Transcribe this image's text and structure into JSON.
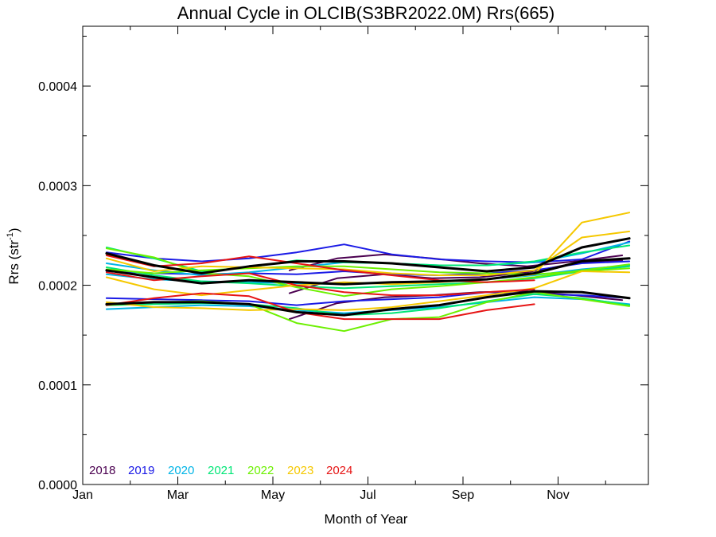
{
  "chart_data": {
    "type": "line",
    "title": "Annual Cycle in OLCIB(S3BR2022.0M) Rrs(665)",
    "xlabel": "Month of Year",
    "ylabel": "Rrs (str",
    "ylabel_sup": "-1",
    "ylabel_close": ")",
    "xlim": [
      1,
      12.9
    ],
    "ylim": [
      0,
      0.00046
    ],
    "x_ticks": [
      {
        "value": 1,
        "label": "Jan"
      },
      {
        "value": 3,
        "label": "Mar"
      },
      {
        "value": 5,
        "label": "May"
      },
      {
        "value": 7,
        "label": "Jul"
      },
      {
        "value": 9,
        "label": "Sep"
      },
      {
        "value": 11,
        "label": "Nov"
      }
    ],
    "y_ticks": [
      {
        "value": 0,
        "label": "0.0000"
      },
      {
        "value": 0.0001,
        "label": "0.0001"
      },
      {
        "value": 0.0002,
        "label": "0.0002"
      },
      {
        "value": 0.0003,
        "label": "0.0003"
      },
      {
        "value": 0.0004,
        "label": "0.0004"
      }
    ],
    "legend": [
      {
        "label": "2018",
        "color": "#4b0050"
      },
      {
        "label": "2019",
        "color": "#1a1ae6"
      },
      {
        "label": "2020",
        "color": "#00b4e6"
      },
      {
        "label": "2021",
        "color": "#00e676"
      },
      {
        "label": "2022",
        "color": "#6cf000"
      },
      {
        "label": "2023",
        "color": "#f5c800"
      },
      {
        "label": "2024",
        "color": "#e61414"
      }
    ],
    "legend_position": "bottom-left",
    "series": [
      {
        "color": "#4b0050",
        "width": 2,
        "x": [
          5.35,
          6.35,
          7.35,
          8.35,
          9.35,
          10.35,
          11.35,
          12.35
        ],
        "y": [
          0.000192,
          0.000207,
          0.000211,
          0.000207,
          0.000208,
          0.000213,
          0.000222,
          0.000225
        ]
      },
      {
        "color": "#4b0050",
        "width": 2,
        "x": [
          5.35,
          6.35,
          7.35,
          8.35,
          9.35,
          10.35,
          11.35,
          12.35
        ],
        "y": [
          0.000166,
          0.000182,
          0.000188,
          0.00019,
          0.000193,
          0.000194,
          0.00019,
          0.000185
        ]
      },
      {
        "color": "#4b0050",
        "width": 2,
        "x": [
          5.35,
          6.35,
          7.35,
          8.35,
          9.35,
          10.35,
          11.35,
          12.35
        ],
        "y": [
          0.000215,
          0.000227,
          0.000231,
          0.000227,
          0.000222,
          0.000219,
          0.000224,
          0.00023
        ]
      },
      {
        "color": "#1a1ae6",
        "width": 2,
        "x": [
          1.5,
          2.5,
          3.5,
          4.5,
          5.5,
          6.5,
          7.5,
          8.5,
          9.5,
          10.5,
          11.5,
          12.5
        ],
        "y": [
          0.000233,
          0.000227,
          0.000224,
          0.000227,
          0.000233,
          0.000241,
          0.000231,
          0.000226,
          0.000224,
          0.000223,
          0.000226,
          0.000244
        ]
      },
      {
        "color": "#1a1ae6",
        "width": 2,
        "x": [
          1.5,
          2.5,
          3.5,
          4.5,
          5.5,
          6.5,
          7.5,
          8.5,
          9.5,
          10.5,
          11.5,
          12.5
        ],
        "y": [
          0.000187,
          0.000186,
          0.000185,
          0.000184,
          0.00018,
          0.000184,
          0.000186,
          0.000188,
          0.000193,
          0.000191,
          0.00019,
          0.000187
        ]
      },
      {
        "color": "#1a1ae6",
        "width": 2,
        "x": [
          1.5,
          2.5,
          3.5,
          4.5,
          5.5,
          6.5,
          7.5,
          8.5,
          9.5,
          10.5,
          11.5,
          12.5
        ],
        "y": [
          0.000214,
          0.000212,
          0.000211,
          0.000212,
          0.000211,
          0.000214,
          0.000211,
          0.00021,
          0.000212,
          0.000215,
          0.000222,
          0.000224
        ]
      },
      {
        "color": "#00b4e6",
        "width": 2,
        "x": [
          1.5,
          2.5,
          3.5,
          4.5,
          5.5,
          6.5,
          7.5,
          8.5,
          9.5,
          10.5,
          11.5,
          12.5
        ],
        "y": [
          0.000176,
          0.000178,
          0.00018,
          0.000179,
          0.000175,
          0.000172,
          0.000175,
          0.000178,
          0.000183,
          0.000188,
          0.000186,
          0.000181
        ]
      },
      {
        "color": "#00b4e6",
        "width": 2,
        "x": [
          1.5,
          2.5,
          3.5,
          4.5,
          5.5,
          6.5,
          7.5,
          8.5,
          9.5,
          10.5,
          11.5,
          12.5
        ],
        "y": [
          0.000211,
          0.000206,
          0.000204,
          0.000203,
          0.000202,
          0.000201,
          0.000203,
          0.000204,
          0.000206,
          0.00021,
          0.000216,
          0.00022
        ]
      },
      {
        "color": "#00b4e6",
        "width": 2,
        "x": [
          1.5,
          2.5,
          3.5,
          4.5,
          5.5,
          6.5,
          7.5,
          8.5,
          9.5,
          10.5,
          11.5,
          12.5
        ],
        "y": [
          0.000222,
          0.000215,
          0.00021,
          0.000213,
          0.000218,
          0.000223,
          0.000222,
          0.00022,
          0.00022,
          0.000223,
          0.000232,
          0.000243
        ]
      },
      {
        "color": "#00e676",
        "width": 2,
        "x": [
          1.5,
          2.5,
          3.5,
          4.5,
          5.5,
          6.5,
          7.5,
          8.5,
          9.5,
          10.5,
          11.5,
          12.5
        ],
        "y": [
          0.000238,
          0.000227,
          0.000214,
          0.000218,
          0.000225,
          0.000223,
          0.000222,
          0.00022,
          0.00022,
          0.000224,
          0.000233,
          0.00024
        ]
      },
      {
        "color": "#00e676",
        "width": 2,
        "x": [
          1.5,
          2.5,
          3.5,
          4.5,
          5.5,
          6.5,
          7.5,
          8.5,
          9.5,
          10.5,
          11.5,
          12.5
        ],
        "y": [
          0.000218,
          0.00021,
          0.000204,
          0.000202,
          0.000199,
          0.000197,
          0.000199,
          0.000201,
          0.000203,
          0.000207,
          0.000214,
          0.000219
        ]
      },
      {
        "color": "#00e676",
        "width": 2,
        "x": [
          1.5,
          2.5,
          3.5,
          4.5,
          5.5,
          6.5,
          7.5,
          8.5,
          9.5,
          10.5,
          11.5,
          12.5
        ],
        "y": [
          0.00018,
          0.000181,
          0.000182,
          0.000181,
          0.000177,
          0.00017,
          0.000172,
          0.000177,
          0.000184,
          0.000191,
          0.000187,
          0.00018
        ]
      },
      {
        "color": "#6cf000",
        "width": 2,
        "x": [
          1.5,
          2.5,
          3.5,
          4.5,
          5.5,
          6.5,
          7.5,
          8.5,
          9.5,
          10.5,
          11.5,
          12.5
        ],
        "y": [
          0.000237,
          0.000228,
          0.000212,
          0.000209,
          0.000198,
          0.000189,
          0.000196,
          0.000199,
          0.000203,
          0.000208,
          0.000215,
          0.000221
        ]
      },
      {
        "color": "#6cf000",
        "width": 2,
        "x": [
          1.5,
          2.5,
          3.5,
          4.5,
          5.5,
          6.5,
          7.5,
          8.5,
          9.5,
          10.5,
          11.5,
          12.5
        ],
        "y": [
          0.00018,
          0.000183,
          0.000184,
          0.000181,
          0.000162,
          0.000154,
          0.000166,
          0.000168,
          0.000183,
          0.000193,
          0.000186,
          0.000179
        ]
      },
      {
        "color": "#6cf000",
        "width": 2,
        "x": [
          1.5,
          2.5,
          3.5,
          4.5,
          5.5,
          6.5,
          7.5,
          8.5,
          9.5,
          10.5,
          11.5,
          12.5
        ],
        "y": [
          0.000216,
          0.000212,
          0.000215,
          0.000217,
          0.000219,
          0.000219,
          0.000216,
          0.000213,
          0.000212,
          0.000211,
          0.000214,
          0.000217
        ]
      },
      {
        "color": "#f5c800",
        "width": 2,
        "x": [
          1.5,
          2.5,
          3.5,
          4.5,
          5.5,
          6.5,
          7.5,
          8.5,
          9.5,
          10.5,
          11.5,
          12.5
        ],
        "y": [
          0.000227,
          0.000214,
          0.000219,
          0.000218,
          0.000217,
          0.000216,
          0.000212,
          0.00021,
          0.00021,
          0.000215,
          0.000248,
          0.000254
        ]
      },
      {
        "color": "#f5c800",
        "width": 2,
        "x": [
          1.5,
          2.5,
          3.5,
          4.5,
          5.5,
          6.5,
          7.5,
          8.5,
          9.5,
          10.5,
          11.5,
          12.5
        ],
        "y": [
          0.000208,
          0.000196,
          0.00019,
          0.000195,
          0.0002,
          0.000203,
          0.000201,
          0.000203,
          0.000206,
          0.000211,
          0.000263,
          0.000273
        ]
      },
      {
        "color": "#f5c800",
        "width": 2,
        "x": [
          1.5,
          2.5,
          3.5,
          4.5,
          5.5,
          6.5,
          7.5,
          8.5,
          9.5,
          10.5,
          11.5,
          12.5
        ],
        "y": [
          0.000183,
          0.000178,
          0.000177,
          0.000175,
          0.000176,
          0.000175,
          0.000178,
          0.000184,
          0.00019,
          0.000197,
          0.000214,
          0.000213
        ]
      },
      {
        "color": "#e61414",
        "width": 2,
        "x": [
          1.5,
          2.5,
          3.5,
          4.5,
          5.5,
          6.5,
          7.5,
          8.5,
          9.5,
          10.5
        ],
        "y": [
          0.00023,
          0.000219,
          0.000222,
          0.000229,
          0.000222,
          0.000215,
          0.00021,
          0.000205,
          0.000203,
          0.000205
        ]
      },
      {
        "color": "#e61414",
        "width": 2,
        "x": [
          1.5,
          2.5,
          3.5,
          4.5,
          5.5,
          6.5,
          7.5,
          8.5,
          9.5,
          10.5
        ],
        "y": [
          0.00018,
          0.000187,
          0.000192,
          0.000189,
          0.000173,
          0.000166,
          0.000166,
          0.000166,
          0.000175,
          0.000181
        ]
      },
      {
        "color": "#e61414",
        "width": 2,
        "x": [
          1.5,
          2.5,
          3.5,
          4.5,
          5.5,
          6.5,
          7.5,
          8.5,
          9.5,
          10.5
        ],
        "y": [
          0.000213,
          0.000205,
          0.000209,
          0.000212,
          0.0002,
          0.000193,
          0.00019,
          0.00019,
          0.000193,
          0.000196
        ]
      },
      {
        "color": "#000000",
        "width": 3,
        "x": [
          1.5,
          2.5,
          3.5,
          4.5,
          5.5,
          6.5,
          7.5,
          8.5,
          9.5,
          10.5,
          11.5,
          12.5
        ],
        "y": [
          0.000232,
          0.00022,
          0.000212,
          0.000219,
          0.000224,
          0.000224,
          0.000222,
          0.000218,
          0.000214,
          0.000218,
          0.000238,
          0.000247
        ]
      },
      {
        "color": "#000000",
        "width": 3,
        "x": [
          1.5,
          2.5,
          3.5,
          4.5,
          5.5,
          6.5,
          7.5,
          8.5,
          9.5,
          10.5,
          11.5,
          12.5
        ],
        "y": [
          0.000215,
          0.000208,
          0.000202,
          0.000205,
          0.000203,
          0.000201,
          0.000203,
          0.000204,
          0.000206,
          0.000212,
          0.000224,
          0.000227
        ]
      },
      {
        "color": "#000000",
        "width": 3,
        "x": [
          1.5,
          2.5,
          3.5,
          4.5,
          5.5,
          6.5,
          7.5,
          8.5,
          9.5,
          10.5,
          11.5,
          12.5
        ],
        "y": [
          0.000181,
          0.000183,
          0.000183,
          0.000181,
          0.000173,
          0.00017,
          0.000176,
          0.00018,
          0.000188,
          0.000194,
          0.000193,
          0.000187
        ]
      }
    ]
  }
}
